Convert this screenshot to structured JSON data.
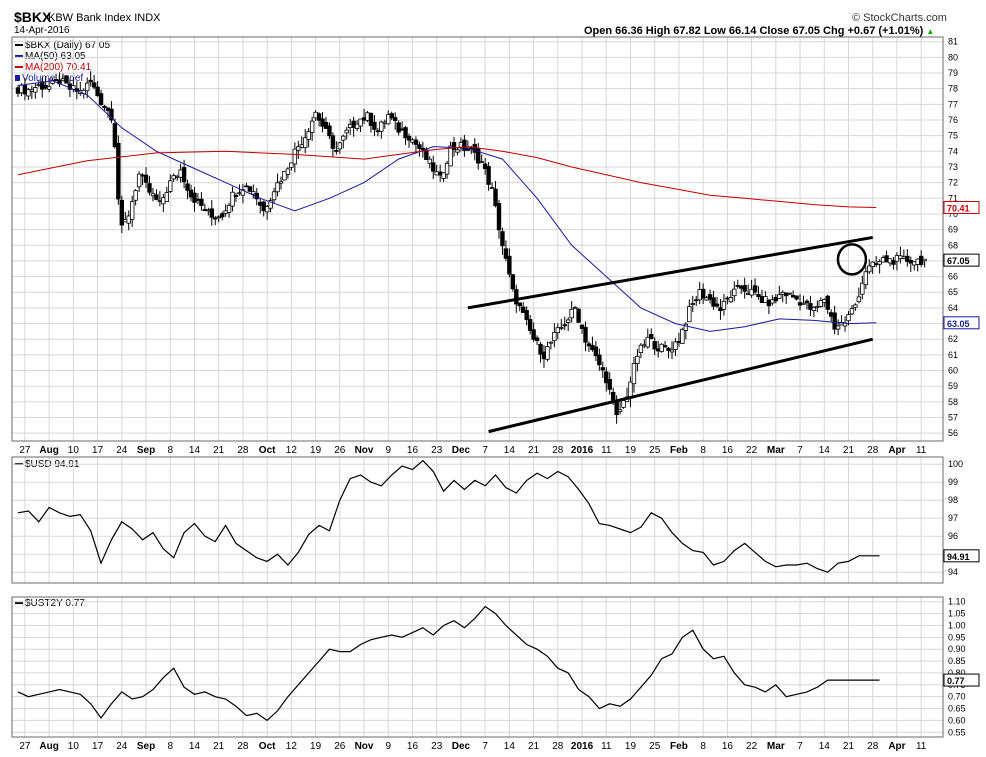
{
  "header": {
    "symbol": "$BKX",
    "name": "KBW Bank Index INDX",
    "date": "14-Apr-2016",
    "brand": "© StockCharts.com",
    "ohlc_text": "Open 66.36   High 67.82   Low 66.14   Close 67.05   Chg +0.67 (+1.01%)",
    "up_arrow": "▲"
  },
  "colors": {
    "ma50": "#1a1a9a",
    "ma200": "#c00000",
    "price": "#000000",
    "grid": "#d7d7d7",
    "frame": "#6a6a6a"
  },
  "x_axis_labels": [
    "27",
    "Aug",
    "10",
    "17",
    "24",
    "Sep",
    "8",
    "14",
    "21",
    "28",
    "Oct",
    "12",
    "19",
    "26",
    "Nov",
    "9",
    "16",
    "23",
    "Dec",
    "7",
    "14",
    "21",
    "28",
    "2016",
    "11",
    "19",
    "25",
    "Feb",
    "8",
    "16",
    "22",
    "Mar",
    "7",
    "14",
    "21",
    "28",
    "Apr",
    "11"
  ],
  "chart_data": [
    {
      "type": "candlestick",
      "title": "$BKX (Daily) 67.05",
      "legend": [
        {
          "name": "$BKX (Daily) 67.05",
          "color": "#000000"
        },
        {
          "name": "MA(50) 63.05",
          "color": "#1a1a9a"
        },
        {
          "name": "MA(200) 70.41",
          "color": "#c00000"
        },
        {
          "name": "Volume undef",
          "color": "#1a1a9a"
        }
      ],
      "ylim": [
        55.5,
        81.3
      ],
      "y_ticks": [
        56,
        57,
        58,
        59,
        60,
        61,
        62,
        63,
        64,
        65,
        66,
        67,
        68,
        69,
        70,
        71,
        72,
        73,
        74,
        75,
        76,
        77,
        78,
        79,
        80,
        81
      ],
      "price_label": "67.05",
      "ma50_label": "63.05",
      "ma200_label": "70.41",
      "close_series_x_days": [
        0,
        3,
        6,
        9,
        12,
        15,
        18,
        21,
        24,
        27,
        28,
        29,
        30,
        32,
        35,
        38,
        41,
        44,
        47,
        50,
        53,
        56,
        59,
        62,
        65,
        68,
        71,
        74,
        77,
        80,
        83,
        86,
        89,
        92,
        95,
        98,
        101,
        104,
        107,
        110,
        113,
        116,
        119,
        122,
        125,
        128,
        131,
        134,
        137,
        140,
        143,
        146,
        149,
        152,
        155,
        158,
        161,
        164,
        167,
        170,
        173,
        176,
        179,
        182,
        185,
        188,
        191,
        194,
        197,
        200,
        203,
        206,
        209,
        212,
        215,
        218,
        221,
        224,
        227,
        230,
        233,
        236,
        239,
        242,
        245,
        250,
        254,
        257,
        260,
        263
      ],
      "close_series": [
        78.0,
        77.9,
        78.2,
        78.1,
        78.5,
        78.0,
        77.8,
        78.4,
        77.2,
        76.3,
        74.5,
        71.0,
        69.0,
        70.0,
        72.5,
        71.4,
        70.6,
        72.0,
        72.8,
        71.2,
        70.5,
        69.8,
        70.0,
        71.2,
        71.8,
        71.5,
        70.2,
        71.6,
        72.6,
        74.0,
        75.0,
        76.5,
        75.2,
        74.0,
        75.2,
        76.0,
        76.2,
        75.3,
        76.3,
        75.4,
        75.0,
        74.2,
        73.2,
        72.2,
        74.2,
        74.3,
        74.0,
        73.3,
        71.5,
        68.0,
        65.0,
        63.5,
        62.0,
        61.0,
        62.2,
        63.0,
        64.0,
        62.0,
        60.8,
        59.5,
        57.0,
        58.5,
        61.0,
        62.0,
        61.5,
        61.3,
        62.0,
        63.8,
        65.0,
        64.5,
        63.9,
        64.8,
        65.3,
        65.0,
        64.5,
        64.3,
        65.0,
        64.7,
        64.3,
        63.8,
        64.6,
        62.8,
        63.1,
        64.2,
        66.4,
        67.05,
        67.05,
        67.05,
        67.05,
        67.05
      ],
      "ma50_x_days": [
        0,
        10,
        20,
        30,
        40,
        50,
        60,
        70,
        80,
        90,
        100,
        110,
        120,
        130,
        140,
        150,
        160,
        170,
        180,
        190,
        200,
        210,
        220,
        230,
        240,
        248
      ],
      "ma50": [
        78.2,
        78.5,
        77.6,
        75.5,
        74.0,
        73.0,
        72.0,
        71.0,
        70.2,
        71.0,
        72.0,
        73.5,
        74.3,
        74.2,
        73.5,
        71.0,
        68.0,
        66.0,
        64.0,
        63.0,
        62.5,
        62.8,
        63.3,
        63.2,
        63.0,
        63.05
      ],
      "ma200_x_days": [
        0,
        20,
        40,
        60,
        80,
        100,
        120,
        130,
        140,
        150,
        160,
        170,
        180,
        190,
        200,
        210,
        220,
        230,
        240,
        248
      ],
      "ma200": [
        72.5,
        73.4,
        73.9,
        74.0,
        73.8,
        73.5,
        74.1,
        74.3,
        74.0,
        73.6,
        73.0,
        72.5,
        72.0,
        71.6,
        71.2,
        71.0,
        70.8,
        70.6,
        70.45,
        70.41
      ],
      "trendlines": [
        {
          "x": [
            130,
            247
          ],
          "y": [
            64.0,
            68.5
          ]
        },
        {
          "x": [
            136,
            247
          ],
          "y": [
            56.1,
            62.0
          ]
        }
      ]
    },
    {
      "type": "line",
      "title": "$USD 94.91",
      "legend": [
        {
          "name": "$USD 94.91",
          "color": "#000000"
        }
      ],
      "ylim": [
        93.4,
        100.4
      ],
      "y_ticks": [
        94,
        95,
        96,
        97,
        98,
        99,
        100
      ],
      "last_label": "94.91",
      "x_days": [
        0,
        3,
        6,
        9,
        12,
        15,
        18,
        21,
        24,
        27,
        30,
        33,
        36,
        39,
        42,
        45,
        48,
        51,
        54,
        57,
        60,
        63,
        66,
        69,
        72,
        75,
        78,
        81,
        84,
        87,
        90,
        93,
        96,
        99,
        102,
        105,
        108,
        111,
        114,
        117,
        120,
        123,
        126,
        129,
        132,
        135,
        138,
        141,
        144,
        147,
        150,
        153,
        156,
        159,
        162,
        165,
        168,
        171,
        174,
        177,
        180,
        183,
        186,
        189,
        192,
        195,
        198,
        201,
        204,
        207,
        210,
        213,
        216,
        219,
        222,
        225,
        228,
        231,
        234,
        237,
        240,
        243,
        246,
        249
      ],
      "values": [
        97.3,
        97.4,
        96.8,
        97.6,
        97.3,
        97.1,
        97.2,
        96.3,
        94.5,
        95.8,
        96.8,
        96.4,
        95.8,
        96.2,
        95.3,
        94.8,
        96.2,
        96.7,
        96.0,
        95.7,
        96.6,
        95.6,
        95.2,
        94.8,
        94.6,
        95.0,
        94.4,
        95.1,
        96.1,
        96.6,
        96.3,
        98.0,
        99.2,
        99.4,
        99.0,
        98.8,
        99.4,
        99.9,
        99.7,
        100.2,
        99.6,
        98.5,
        99.1,
        98.6,
        99.1,
        98.8,
        99.4,
        98.7,
        98.4,
        99.1,
        99.5,
        99.2,
        99.6,
        99.3,
        98.6,
        97.8,
        96.7,
        96.6,
        96.4,
        96.2,
        96.5,
        97.3,
        97.0,
        96.2,
        95.6,
        95.2,
        95.1,
        94.4,
        94.6,
        95.2,
        95.6,
        95.1,
        94.6,
        94.3,
        94.4,
        94.4,
        94.5,
        94.2,
        94.0,
        94.5,
        94.6,
        94.91,
        94.91,
        94.91
      ]
    },
    {
      "type": "line",
      "title": "$UST2Y 0.77",
      "legend": [
        {
          "name": "$UST2Y 0.77",
          "color": "#000000"
        }
      ],
      "ylim": [
        0.53,
        1.12
      ],
      "y_ticks": [
        0.55,
        0.6,
        0.65,
        0.7,
        0.75,
        0.8,
        0.85,
        0.9,
        0.95,
        1.0,
        1.05,
        1.1
      ],
      "last_label": "0.77",
      "x_days": [
        0,
        3,
        6,
        9,
        12,
        15,
        18,
        21,
        24,
        27,
        30,
        33,
        36,
        39,
        42,
        45,
        48,
        51,
        54,
        57,
        60,
        63,
        66,
        69,
        72,
        75,
        78,
        81,
        84,
        87,
        90,
        93,
        96,
        99,
        102,
        105,
        108,
        111,
        114,
        117,
        120,
        123,
        126,
        129,
        132,
        135,
        138,
        141,
        144,
        147,
        150,
        153,
        156,
        159,
        162,
        165,
        168,
        171,
        174,
        177,
        180,
        183,
        186,
        189,
        192,
        195,
        198,
        201,
        204,
        207,
        210,
        213,
        216,
        219,
        222,
        225,
        228,
        231,
        234,
        237,
        240,
        243,
        246,
        249
      ],
      "values": [
        0.72,
        0.7,
        0.71,
        0.72,
        0.73,
        0.72,
        0.71,
        0.67,
        0.61,
        0.67,
        0.72,
        0.69,
        0.7,
        0.73,
        0.78,
        0.82,
        0.74,
        0.71,
        0.72,
        0.7,
        0.69,
        0.66,
        0.62,
        0.63,
        0.6,
        0.64,
        0.7,
        0.75,
        0.8,
        0.85,
        0.9,
        0.89,
        0.89,
        0.92,
        0.94,
        0.95,
        0.96,
        0.95,
        0.97,
        0.99,
        0.96,
        1.0,
        1.02,
        0.99,
        1.03,
        1.08,
        1.05,
        1.0,
        0.96,
        0.92,
        0.9,
        0.87,
        0.82,
        0.8,
        0.73,
        0.7,
        0.65,
        0.67,
        0.66,
        0.69,
        0.74,
        0.79,
        0.86,
        0.88,
        0.95,
        0.98,
        0.9,
        0.86,
        0.87,
        0.8,
        0.75,
        0.74,
        0.72,
        0.75,
        0.7,
        0.71,
        0.72,
        0.74,
        0.77,
        0.77,
        0.77,
        0.77,
        0.77,
        0.77
      ]
    }
  ]
}
